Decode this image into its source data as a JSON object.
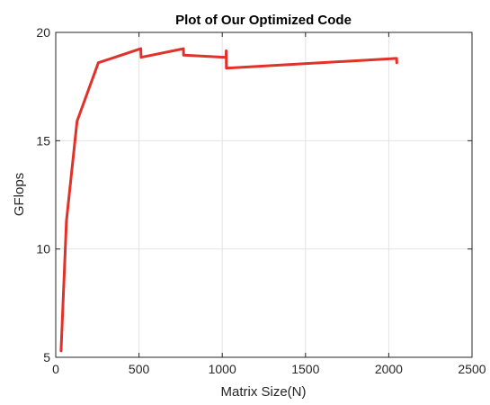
{
  "chart_data": {
    "type": "line",
    "title": "Plot of Our Optimized Code",
    "xlabel": "Matrix Size(N)",
    "ylabel": "GFlops",
    "xlim": [
      0,
      2500
    ],
    "ylim": [
      5,
      20
    ],
    "xticks": [
      0,
      500,
      1000,
      1500,
      2000,
      2500
    ],
    "yticks": [
      5,
      10,
      15,
      20
    ],
    "grid": true,
    "legend": "none",
    "colors": {
      "line": "#e03228",
      "axis": "#262626",
      "grid": "#e3e3e3",
      "plot_background": "#ffffff"
    },
    "series": [
      {
        "color": "#e03228",
        "x": [
          32,
          64,
          128,
          256,
          511,
          512,
          513,
          767,
          768,
          769,
          1023,
          1024,
          1025,
          2047,
          2048
        ],
        "y": [
          5.3,
          11.3,
          15.9,
          18.6,
          19.25,
          19.0,
          18.85,
          19.25,
          18.95,
          18.95,
          18.85,
          19.15,
          18.35,
          18.8,
          18.6
        ]
      }
    ]
  }
}
